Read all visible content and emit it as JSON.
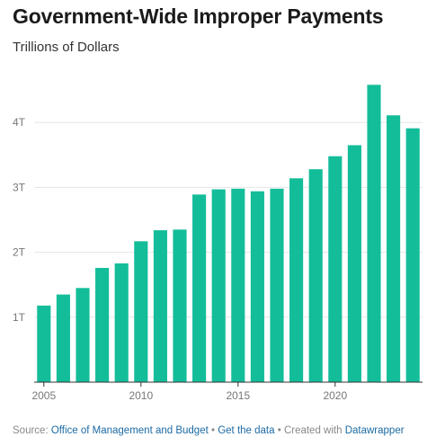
{
  "title": "Government-Wide Improper Payments",
  "subtitle": "Trillions of Dollars",
  "footer": {
    "source_prefix": "Source: ",
    "source_link": "Office of Management and Budget",
    "separator": " • ",
    "get_data": "Get the data",
    "created_prefix": "Created with ",
    "created_link": "Datawrapper"
  },
  "colors": {
    "bar": "#14bd9a",
    "grid": "#e5e5e5",
    "baseline": "#333333",
    "link": "#1c6aa3"
  },
  "chart_data": {
    "type": "bar",
    "categories": [
      2005,
      2006,
      2007,
      2008,
      2009,
      2010,
      2011,
      2012,
      2013,
      2014,
      2015,
      2016,
      2017,
      2018,
      2019,
      2020,
      2021,
      2022,
      2023,
      2024
    ],
    "values": [
      1.18,
      1.35,
      1.45,
      1.76,
      1.83,
      2.17,
      2.34,
      2.35,
      2.89,
      2.97,
      2.98,
      2.94,
      2.98,
      3.14,
      3.28,
      3.48,
      3.65,
      4.58,
      4.11,
      3.91
    ],
    "y_ticks": [
      1,
      2,
      3,
      4
    ],
    "y_tick_labels": [
      "1T",
      "2T",
      "3T",
      "4T"
    ],
    "x_ticks": [
      2005,
      2010,
      2015,
      2020
    ],
    "x_tick_labels": [
      "2005",
      "2010",
      "2015",
      "2020"
    ],
    "ylim": [
      0,
      4.65
    ],
    "grid": true,
    "title": "Government-Wide Improper Payments",
    "subtitle": "Trillions of Dollars"
  }
}
